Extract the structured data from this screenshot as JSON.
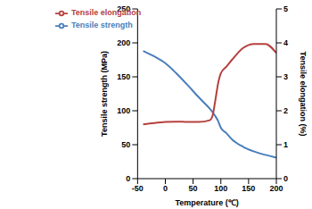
{
  "chart_data": {
    "type": "line",
    "x_label": "Temperature (℃)",
    "y_label": "Tensile strength (MPa)",
    "y2_label": "Tensile elongation (%)",
    "x": [
      -40,
      -20,
      0,
      20,
      40,
      60,
      80,
      85,
      90,
      95,
      100,
      110,
      120,
      140,
      160,
      180,
      200
    ],
    "series": [
      {
        "name": "Tensile strength",
        "color": "#4a7ebb",
        "values": [
          188,
          180,
          170,
          155,
          138,
          120,
          103,
          98,
          92,
          85,
          75,
          67,
          58,
          47,
          40,
          35,
          31
        ]
      },
      {
        "name": "Tensile elongation",
        "color": "#b5403d",
        "axis": "y2",
        "values": [
          1.6,
          1.64,
          1.67,
          1.68,
          1.67,
          1.67,
          1.72,
          1.85,
          2.3,
          2.8,
          3.1,
          3.3,
          3.5,
          3.85,
          3.97,
          3.97,
          3.7
        ]
      }
    ],
    "xlim": [
      -50,
      200
    ],
    "xticks": [
      -50,
      0,
      50,
      100,
      150,
      200
    ],
    "ylim": [
      0,
      250
    ],
    "yticks": [
      0,
      50,
      100,
      150,
      200,
      250
    ],
    "y2lim": [
      0,
      5
    ],
    "y2ticks": [
      0,
      1,
      2,
      3,
      4,
      5
    ],
    "grid": false,
    "legend": "upper left"
  }
}
